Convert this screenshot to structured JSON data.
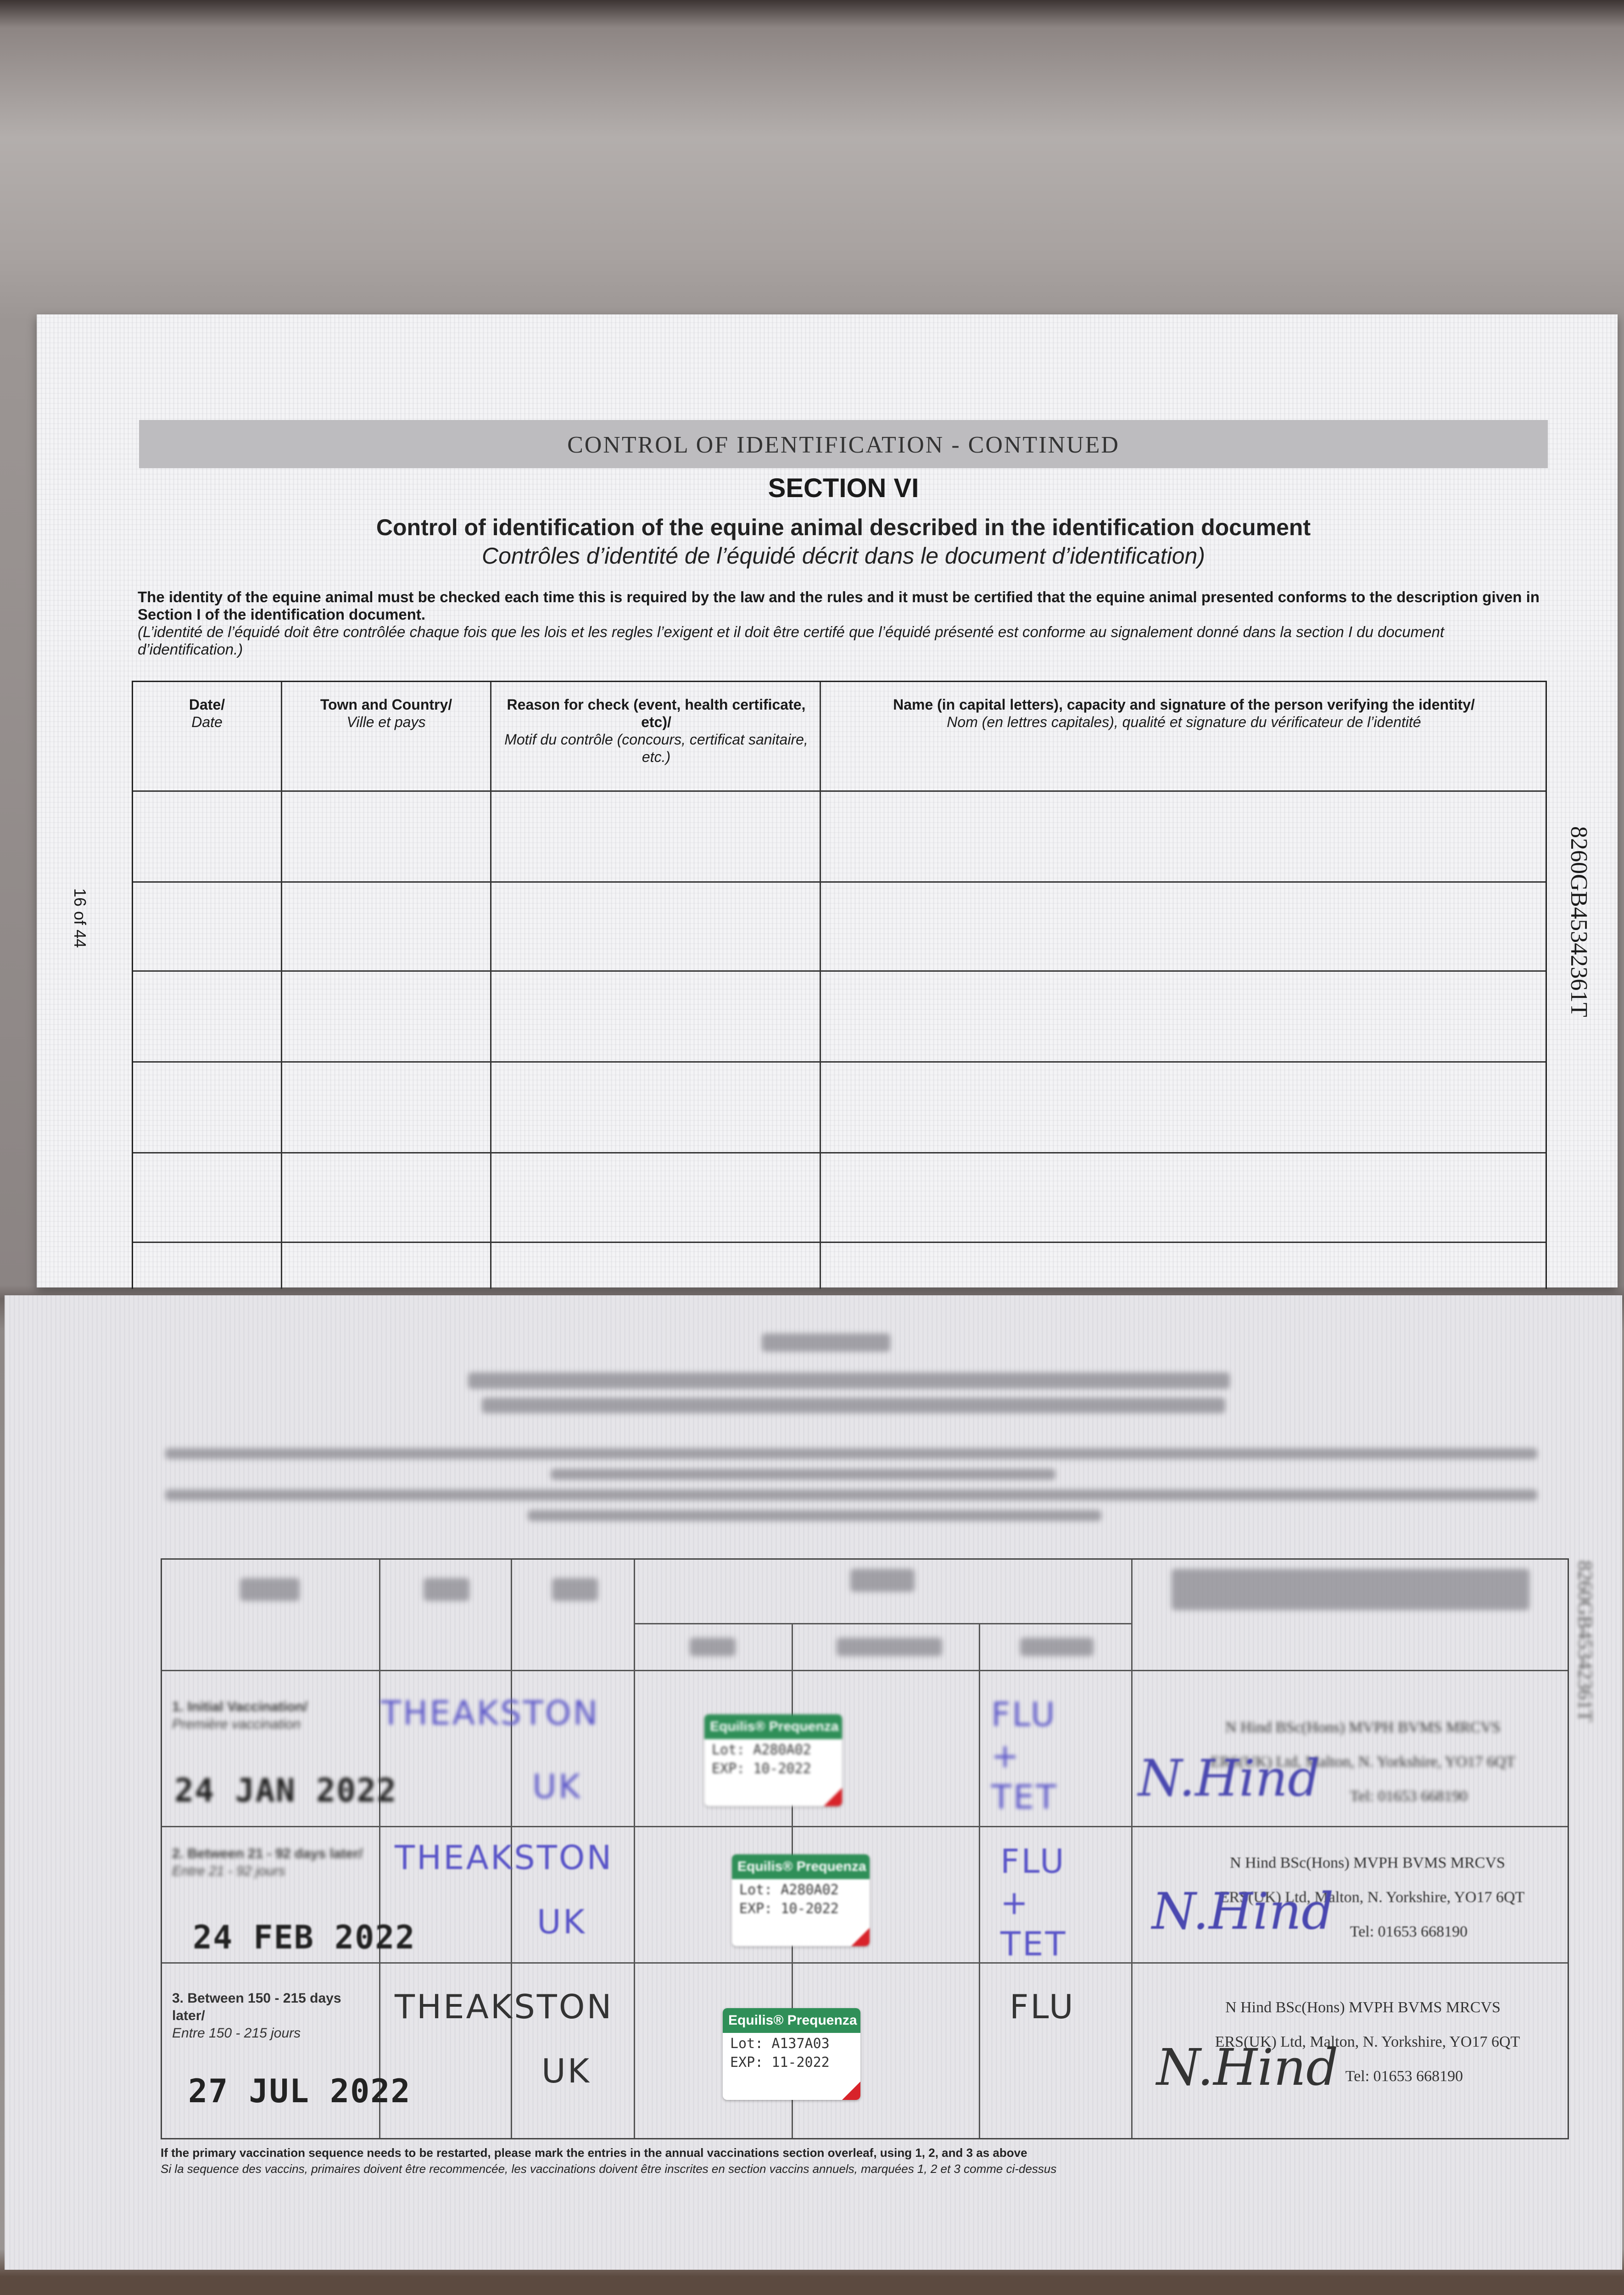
{
  "top_page": {
    "banner": "CONTROL OF IDENTIFICATION - CONTINUED",
    "section": "SECTION VI",
    "title_en": "Control of identification of the equine animal described in the identification document",
    "title_fr": "Contrôles d’identité de l’équidé décrit dans le document d’identification)",
    "intro_en": "The identity of the equine animal must be checked each time this is required by the law and the rules and it must be certified that the equine animal presented conforms to the description given in Section I of the identification document.",
    "intro_fr": "(L’identité de l’équidé doit être contrôlée chaque fois que les lois et les regles l’exigent et il doit être certifé que l’équidé présenté est conforme au signalement donné dans la section I du document d’identification.)",
    "page_number": "16 of 44",
    "passport_number": "8260GB45342361T",
    "table": {
      "columns": [
        {
          "en": "Date/",
          "fr": "Date"
        },
        {
          "en": "Town and Country/",
          "fr": "Ville et pays"
        },
        {
          "en": "Reason for check (event, health certificate, etc)/",
          "fr": "Motif du contrôle (concours, certificat sanitaire, etc.)"
        },
        {
          "en": "Name (in capital letters), capacity and signature of the person verifying the identity/",
          "fr": "Nom (en lettres capitales), qualité et signature du vérificateur de l’identité"
        }
      ]
    }
  },
  "bottom_page": {
    "passport_number": "8260GB45342361T",
    "rows": [
      {
        "label": "1. Initial Vaccination/",
        "label_fr": "Première vaccination",
        "date": "24 JAN 2022",
        "place": "THEAKSTON",
        "country": "UK",
        "vaccine": {
          "name": "Equilis® Prequenza Te",
          "lot_label": "Lot:",
          "lot": "A280A02",
          "exp_label": "EXP:",
          "exp": "10-2022"
        },
        "disease": "FLU + TET",
        "vet": {
          "line1": "N Hind BSc(Hons) MVPH BVMS MRCVS",
          "line2": "ERS(UK) Ltd, Malton, N. Yorkshire, YO17 6QT",
          "line3": "Tel: 01653 668190",
          "signature": "N.Hind"
        }
      },
      {
        "label": "2. Between 21 - 92 days later/",
        "label_fr": "Entre 21 - 92 jours",
        "date": "24 FEB 2022",
        "place": "THEAKSTON",
        "country": "UK",
        "vaccine": {
          "name": "Equilis® Prequenza Te",
          "lot_label": "Lot:",
          "lot": "A280A02",
          "exp_label": "EXP:",
          "exp": "10-2022"
        },
        "disease": "FLU + TET",
        "vet": {
          "line1": "N Hind BSc(Hons) MVPH BVMS MRCVS",
          "line2": "ERS(UK) Ltd, Malton, N. Yorkshire, YO17 6QT",
          "line3": "Tel: 01653 668190",
          "signature": "N.Hind"
        }
      },
      {
        "label": "3. Between 150 - 215 days later/",
        "label_fr": "Entre 150 - 215 jours",
        "date": "27 JUL 2022",
        "place": "THEAKSTON",
        "country": "UK",
        "vaccine": {
          "name": "Equilis® Prequenza",
          "lot_label": "Lot:",
          "lot": "A137A03",
          "exp_label": "EXP:",
          "exp": "11-2022"
        },
        "disease": "FLU",
        "vet": {
          "line1": "N Hind BSc(Hons) MVPH BVMS MRCVS",
          "line2": "ERS(UK) Ltd, Malton, N. Yorkshire, YO17 6QT",
          "line3": "Tel: 01653 668190",
          "signature": "N.Hind"
        }
      }
    ],
    "footnote_en": "If the primary vaccination sequence needs to be restarted, please mark the entries in the annual vaccinations section overleaf, using 1, 2, and 3 as above",
    "footnote_fr": "Si la sequence des vaccins, primaires doivent être recommencée, les vaccinations doivent être inscrites en section vaccins annuels, marquées 1, 2 et 3 comme ci-dessus"
  },
  "colors": {
    "label_green": "#2f8f58",
    "ink_blue": "#5a55c8",
    "label_red": "#d8232a"
  }
}
